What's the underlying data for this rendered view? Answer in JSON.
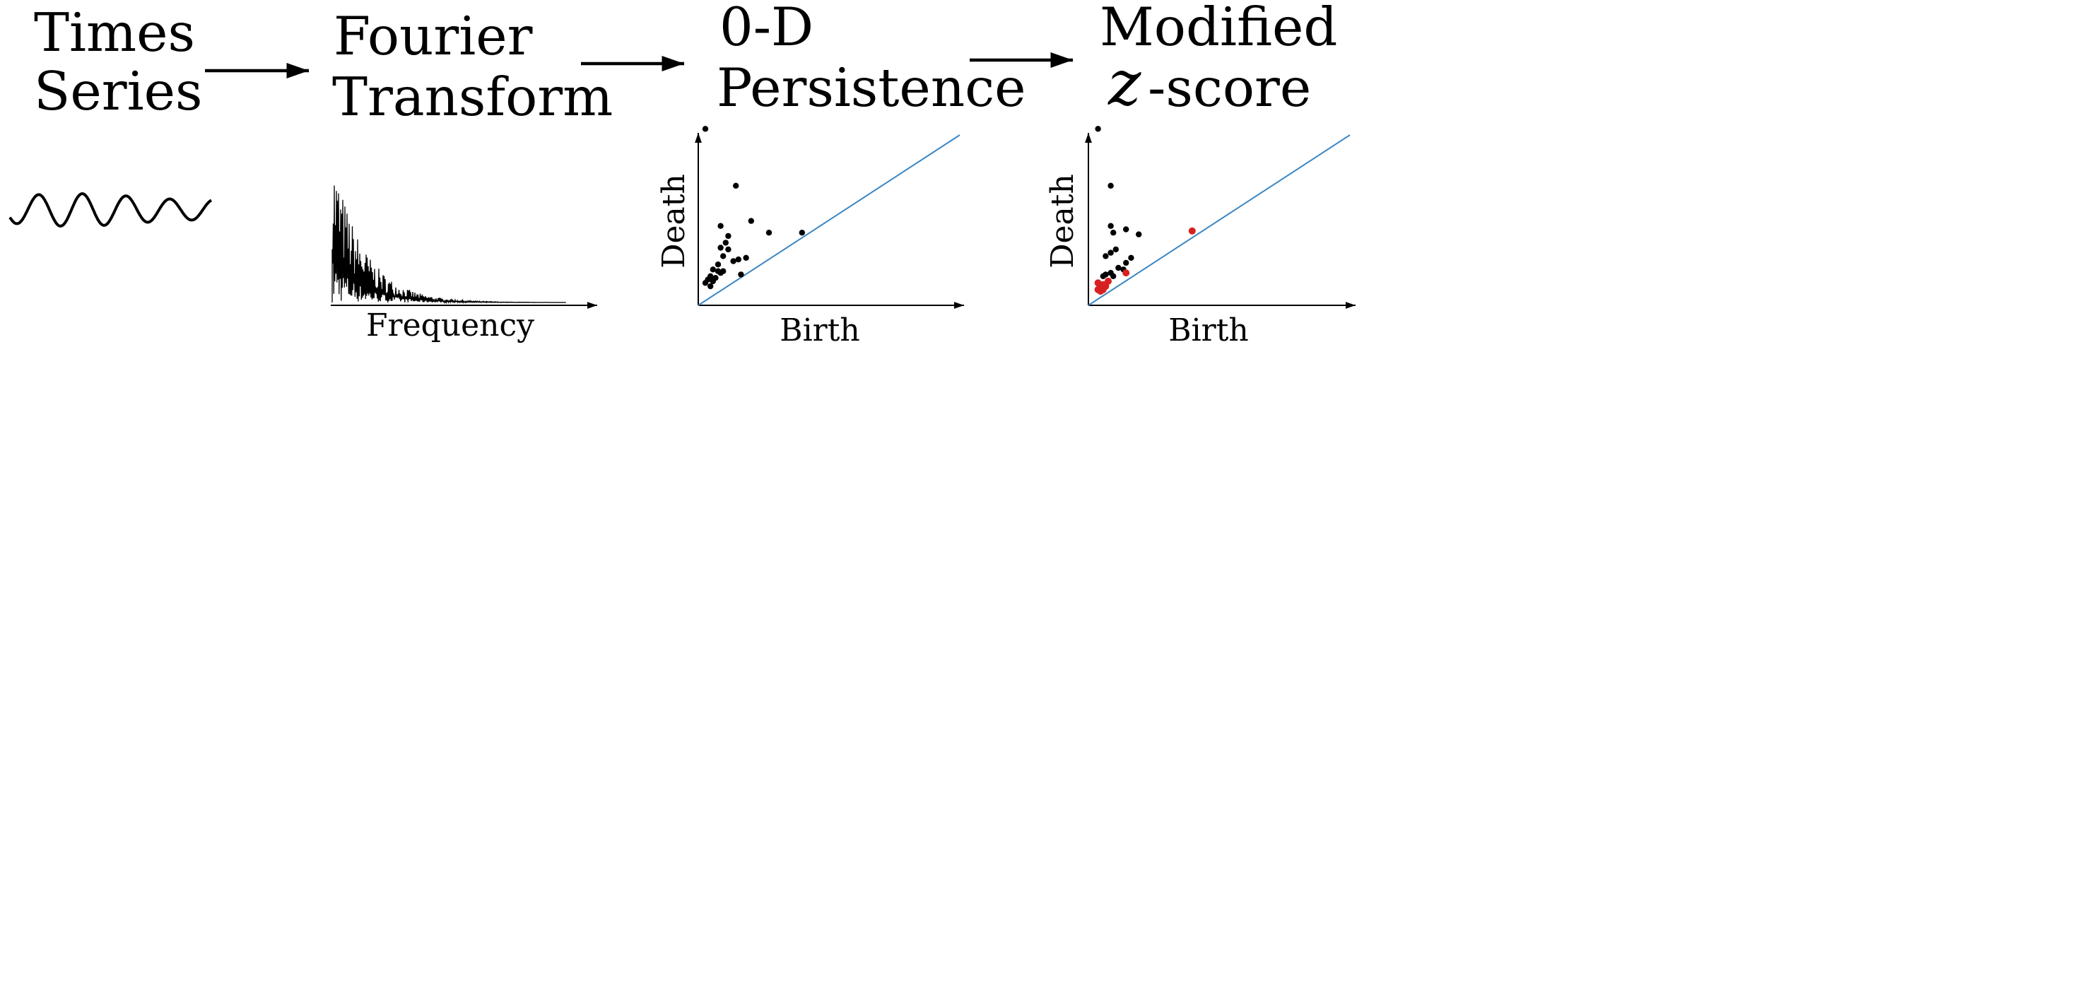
{
  "colors": {
    "ink": "#000000",
    "diagonal": "#3a86c4",
    "highlight": "#d92020"
  },
  "stages": [
    {
      "line1": "Times",
      "line2": "Series"
    },
    {
      "line1": "Fourier",
      "line2": "Transform"
    },
    {
      "line1": "0-D",
      "line2": "Persistence"
    },
    {
      "line1": "Modified",
      "z": "z",
      "line2": "-score"
    }
  ],
  "fourier": {
    "xlabel": "Frequency"
  },
  "persistence": {
    "xlabel": "Birth",
    "ylabel": "Death",
    "points": [
      [
        0.0,
        1.02
      ],
      [
        0.0,
        0.1
      ],
      [
        0.01,
        0.12
      ],
      [
        0.02,
        0.08
      ],
      [
        0.02,
        0.14
      ],
      [
        0.03,
        0.11
      ],
      [
        0.04,
        0.13
      ],
      [
        0.05,
        0.17
      ],
      [
        0.06,
        0.16
      ],
      [
        0.07,
        0.17
      ],
      [
        0.03,
        0.18
      ],
      [
        0.05,
        0.21
      ],
      [
        0.06,
        0.31
      ],
      [
        0.07,
        0.26
      ],
      [
        0.09,
        0.3
      ],
      [
        0.08,
        0.34
      ],
      [
        0.09,
        0.38
      ],
      [
        0.06,
        0.44
      ],
      [
        0.11,
        0.23
      ],
      [
        0.13,
        0.24
      ],
      [
        0.16,
        0.25
      ],
      [
        0.12,
        0.68
      ],
      [
        0.18,
        0.47
      ],
      [
        0.25,
        0.4
      ],
      [
        0.38,
        0.4
      ],
      [
        0.14,
        0.15
      ]
    ]
  },
  "modified": {
    "xlabel": "Birth",
    "ylabel": "Death",
    "points": [
      [
        0.01,
        1.02
      ],
      [
        0.06,
        0.68
      ],
      [
        0.12,
        0.42
      ],
      [
        0.17,
        0.39
      ],
      [
        0.06,
        0.44
      ],
      [
        0.07,
        0.4
      ],
      [
        0.08,
        0.3
      ],
      [
        0.06,
        0.28
      ],
      [
        0.04,
        0.26
      ],
      [
        0.12,
        0.22
      ],
      [
        0.09,
        0.19
      ],
      [
        0.11,
        0.18
      ],
      [
        0.14,
        0.25
      ],
      [
        0.04,
        0.15
      ],
      [
        0.06,
        0.16
      ],
      [
        0.07,
        0.14
      ],
      [
        0.03,
        0.14
      ],
      [
        0.12,
        0.16
      ]
    ],
    "highlighted": [
      [
        0.01,
        0.06
      ],
      [
        0.02,
        0.08
      ],
      [
        0.02,
        0.05
      ],
      [
        0.03,
        0.09
      ],
      [
        0.01,
        0.1
      ],
      [
        0.04,
        0.08
      ],
      [
        0.05,
        0.11
      ],
      [
        0.03,
        0.06
      ],
      [
        0.38,
        0.41
      ],
      [
        0.12,
        0.16
      ]
    ]
  }
}
